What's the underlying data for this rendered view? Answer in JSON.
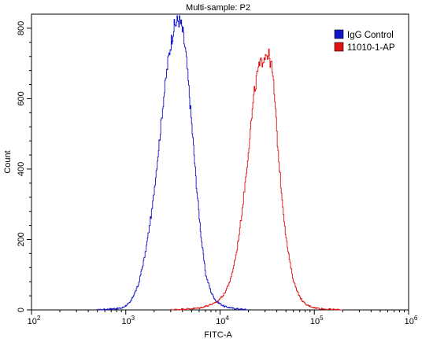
{
  "chart_data": {
    "type": "line",
    "title": "Multi-sample: P2",
    "xlabel": "FITC-A",
    "ylabel": "Count",
    "x_scale": "log",
    "xlim": [
      100,
      1000000
    ],
    "ylim": [
      0,
      840
    ],
    "x_ticks": [
      {
        "value": 100,
        "base": "10",
        "exp": "2"
      },
      {
        "value": 1000,
        "base": "10",
        "exp": "3"
      },
      {
        "value": 10000,
        "base": "10",
        "exp": "4"
      },
      {
        "value": 100000,
        "base": "10",
        "exp": "5"
      },
      {
        "value": 1000000,
        "base": "10",
        "exp": "6"
      }
    ],
    "y_ticks": [
      "0",
      "200",
      "400",
      "600",
      "800"
    ],
    "legend_position": "top-right",
    "series": [
      {
        "name": "IgG Control",
        "color": "#1414c8",
        "x": [
          500,
          900,
          1100,
          1350,
          1600,
          1900,
          2200,
          2500,
          2800,
          3000,
          3200,
          3400,
          3600,
          3800,
          4000,
          4300,
          4600,
          5000,
          5600,
          6300,
          7000,
          8000,
          9000,
          11000,
          14000,
          20000
        ],
        "y": [
          0,
          5,
          20,
          70,
          160,
          290,
          450,
          600,
          710,
          760,
          800,
          815,
          825,
          815,
          790,
          730,
          640,
          520,
          350,
          200,
          100,
          50,
          25,
          10,
          4,
          0
        ]
      },
      {
        "name": "11010-1-AP",
        "color": "#dc1414",
        "x": [
          3000,
          6000,
          9000,
          11000,
          13000,
          15000,
          17000,
          19000,
          21000,
          23000,
          25000,
          27000,
          29000,
          31000,
          33000,
          35000,
          37000,
          39000,
          41000,
          44000,
          47000,
          50000,
          55000,
          60000,
          70000,
          80000,
          100000,
          130000,
          200000
        ],
        "y": [
          0,
          5,
          20,
          45,
          90,
          170,
          280,
          400,
          520,
          620,
          680,
          700,
          720,
          730,
          720,
          690,
          630,
          540,
          450,
          350,
          270,
          200,
          130,
          80,
          35,
          15,
          6,
          2,
          0
        ]
      }
    ]
  }
}
